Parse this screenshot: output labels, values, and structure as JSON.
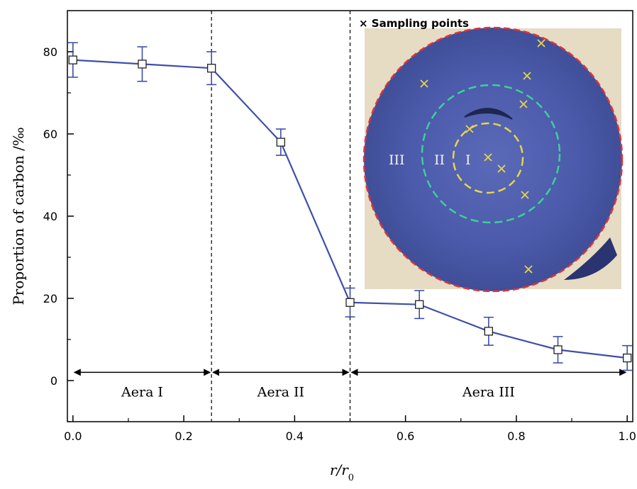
{
  "chart_data": {
    "type": "line",
    "title": "",
    "xlabel": "r/r0",
    "ylabel": "Proportion of carbon /‰",
    "xlim": [
      -0.01,
      1.01
    ],
    "ylim": [
      -10,
      90
    ],
    "x_ticks": [
      0.0,
      0.2,
      0.4,
      0.6,
      0.8,
      1.0
    ],
    "x_tick_labels": [
      "0.0",
      "0.2",
      "0.4",
      "0.6",
      "0.8",
      "1.0"
    ],
    "y_ticks": [
      0,
      20,
      40,
      60,
      80
    ],
    "y_tick_labels": [
      "0",
      "20",
      "40",
      "60",
      "80"
    ],
    "series": [
      {
        "x": [
          0.0,
          0.125,
          0.25,
          0.375,
          0.5,
          0.625,
          0.75,
          0.875,
          1.0
        ],
        "y": [
          78,
          77,
          76,
          58,
          19,
          18.5,
          12,
          7.5,
          5.5
        ],
        "error": [
          4.2,
          4.2,
          4.0,
          3.2,
          3.5,
          3.4,
          3.4,
          3.2,
          3.0
        ],
        "color": "#3f4fa8",
        "marker": "square"
      }
    ],
    "boundaries": [
      0.25,
      0.5
    ],
    "regions": [
      {
        "label": "Aera I",
        "from": 0.0,
        "to": 0.25
      },
      {
        "label": "Aera II",
        "from": 0.25,
        "to": 0.5
      },
      {
        "label": "Aera III",
        "from": 0.5,
        "to": 1.0
      }
    ],
    "region_arrow_y": 2,
    "inset": {
      "legend": "Sampling points",
      "legend_marker": "×",
      "ring_labels": [
        "III",
        "II",
        "I"
      ]
    }
  }
}
